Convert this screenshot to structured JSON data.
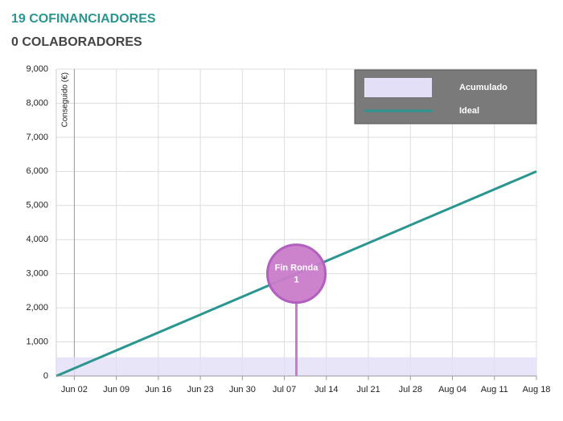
{
  "header": {
    "cofinanciadores": "19 COFINANCIADORES",
    "colaboradores": "0 COLABORADORES"
  },
  "chart_data": {
    "type": "line",
    "ylabel": "Conseguido (€)",
    "xlim": [
      "May 30",
      "Aug 18"
    ],
    "xticks": [
      "Jun 02",
      "Jun 09",
      "Jun 16",
      "Jun 23",
      "Jun 30",
      "Jul 07",
      "Jul 14",
      "Jul 21",
      "Jul 28",
      "Aug 04",
      "Aug 11",
      "Aug 18"
    ],
    "ylim": [
      0,
      9000
    ],
    "yticks": [
      0,
      {
        "value": 1000,
        "label": "1,000"
      },
      {
        "value": 2000,
        "label": "2,000"
      },
      {
        "value": 3000,
        "label": "3,000"
      },
      {
        "value": 4000,
        "label": "4,000"
      },
      {
        "value": 5000,
        "label": "5,000"
      },
      {
        "value": 6000,
        "label": "6,000"
      },
      {
        "value": 7000,
        "label": "7,000"
      },
      {
        "value": 8000,
        "label": "8,000"
      },
      {
        "value": 9000,
        "label": "9,000"
      }
    ],
    "grid": true,
    "legend": "top-right",
    "series": [
      {
        "name": "Acumulado",
        "style": "area",
        "color": "#e3dff7",
        "x": [
          "May 30",
          "Aug 18"
        ],
        "values": [
          550,
          550
        ]
      },
      {
        "name": "Ideal",
        "style": "line",
        "color": "#2a968f",
        "x": [
          "May 30",
          "Aug 18"
        ],
        "values": [
          0,
          6000
        ]
      }
    ],
    "annotation": {
      "lines": [
        "Fin Ronda",
        "1"
      ],
      "x": "Jul 09",
      "y": 3000,
      "color": "#c97cc9"
    }
  }
}
